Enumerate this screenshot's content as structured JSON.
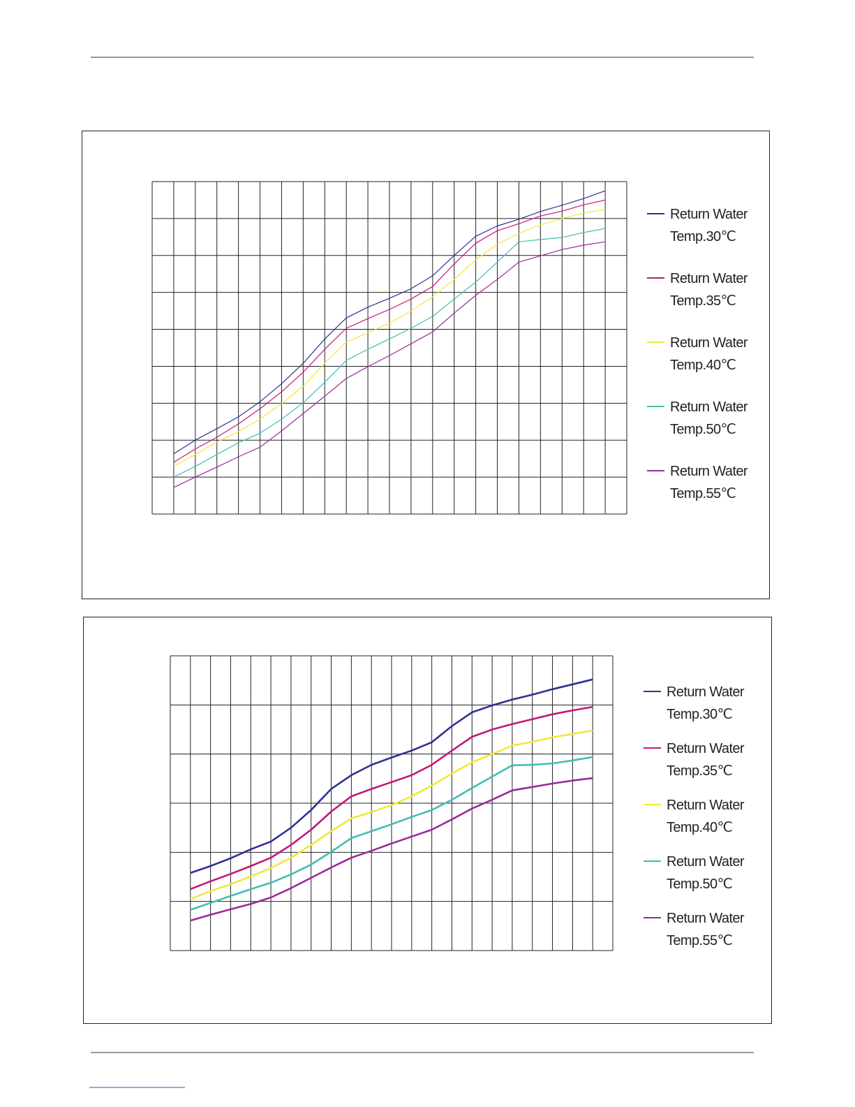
{
  "chart_data": [
    {
      "type": "line",
      "x": [
        1,
        2,
        3,
        4,
        5,
        6,
        7,
        8,
        9,
        10,
        11,
        12,
        13,
        14,
        15,
        16,
        17,
        18,
        19,
        20,
        21
      ],
      "xlim": [
        0,
        22
      ],
      "xticks": [
        0,
        1,
        2,
        3,
        4,
        5,
        6,
        7,
        8,
        9,
        10,
        11,
        12,
        13,
        14,
        15,
        16,
        17,
        18,
        19,
        20,
        21,
        22
      ],
      "ylim": [
        0,
        9
      ],
      "yticks": [
        0,
        1,
        2,
        3,
        4,
        5,
        6,
        7,
        8,
        9
      ],
      "grid": true,
      "legend": "right",
      "line_width": 1.2,
      "series": [
        {
          "name": "Return Water Temp.30℃",
          "color": "#2e3192",
          "values": [
            1.63,
            2.0,
            2.31,
            2.63,
            3.04,
            3.53,
            4.08,
            4.74,
            5.31,
            5.6,
            5.84,
            6.1,
            6.45,
            7.0,
            7.52,
            7.8,
            7.98,
            8.19,
            8.36,
            8.54,
            8.75
          ]
        },
        {
          "name": "Return Water Temp.35℃",
          "color": "#c2187a",
          "values": [
            1.4,
            1.76,
            2.08,
            2.44,
            2.85,
            3.31,
            3.84,
            4.46,
            5.03,
            5.29,
            5.54,
            5.82,
            6.16,
            6.77,
            7.33,
            7.67,
            7.86,
            8.07,
            8.2,
            8.37,
            8.5
          ]
        },
        {
          "name": "Return Water Temp.40℃",
          "color": "#f0e83a",
          "values": [
            1.29,
            1.61,
            1.95,
            2.23,
            2.57,
            2.99,
            3.46,
            4.08,
            4.65,
            4.91,
            5.16,
            5.5,
            5.88,
            6.35,
            6.88,
            7.3,
            7.6,
            7.83,
            8.0,
            8.15,
            8.24
          ]
        },
        {
          "name": "Return Water Temp.50℃",
          "color": "#40bfae",
          "values": [
            1.0,
            1.29,
            1.61,
            1.93,
            2.19,
            2.57,
            3.01,
            3.57,
            4.16,
            4.46,
            4.74,
            5.03,
            5.35,
            5.82,
            6.28,
            6.82,
            7.37,
            7.43,
            7.49,
            7.62,
            7.73
          ]
        },
        {
          "name": "Return Water Temp.55℃",
          "color": "#9a2a9a",
          "values": [
            0.72,
            1.0,
            1.27,
            1.55,
            1.81,
            2.25,
            2.72,
            3.19,
            3.67,
            3.99,
            4.29,
            4.61,
            4.93,
            5.44,
            5.92,
            6.35,
            6.82,
            6.99,
            7.16,
            7.28,
            7.37
          ]
        }
      ]
    },
    {
      "type": "line",
      "x": [
        1,
        2,
        3,
        4,
        5,
        6,
        7,
        8,
        9,
        10,
        11,
        12,
        13,
        14,
        15,
        16,
        17,
        18,
        19,
        20,
        21
      ],
      "xlim": [
        0,
        22
      ],
      "xticks": [
        0,
        1,
        2,
        3,
        4,
        5,
        6,
        7,
        8,
        9,
        10,
        11,
        12,
        13,
        14,
        15,
        16,
        17,
        18,
        19,
        20,
        21,
        22
      ],
      "ylim": [
        0,
        6
      ],
      "yticks": [
        0,
        1,
        2,
        3,
        4,
        5,
        6
      ],
      "grid": true,
      "legend": "right",
      "line_width": 2.6,
      "series": [
        {
          "name": "Return Water Temp.30℃",
          "color": "#2e3192",
          "values": [
            1.58,
            1.72,
            1.88,
            2.06,
            2.22,
            2.5,
            2.86,
            3.29,
            3.57,
            3.78,
            3.93,
            4.07,
            4.24,
            4.57,
            4.85,
            4.99,
            5.11,
            5.21,
            5.32,
            5.42,
            5.52
          ]
        },
        {
          "name": "Return Water Temp.35℃",
          "color": "#c2187a",
          "values": [
            1.25,
            1.41,
            1.56,
            1.72,
            1.89,
            2.15,
            2.46,
            2.83,
            3.14,
            3.29,
            3.43,
            3.57,
            3.78,
            4.07,
            4.35,
            4.5,
            4.61,
            4.71,
            4.81,
            4.89,
            4.96
          ]
        },
        {
          "name": "Return Water Temp.40℃",
          "color": "#f0e83a",
          "values": [
            1.05,
            1.21,
            1.35,
            1.51,
            1.68,
            1.89,
            2.15,
            2.43,
            2.69,
            2.82,
            2.96,
            3.14,
            3.36,
            3.6,
            3.83,
            4.0,
            4.17,
            4.25,
            4.34,
            4.41,
            4.48
          ]
        },
        {
          "name": "Return Water Temp.50℃",
          "color": "#40bfae",
          "values": [
            0.83,
            0.97,
            1.11,
            1.25,
            1.38,
            1.55,
            1.75,
            2.01,
            2.29,
            2.43,
            2.57,
            2.72,
            2.86,
            3.07,
            3.31,
            3.54,
            3.77,
            3.78,
            3.81,
            3.87,
            3.94
          ]
        },
        {
          "name": "Return Water Temp.55℃",
          "color": "#9a2a9a",
          "values": [
            0.61,
            0.73,
            0.84,
            0.95,
            1.08,
            1.27,
            1.48,
            1.69,
            1.89,
            2.03,
            2.18,
            2.32,
            2.46,
            2.67,
            2.89,
            3.07,
            3.26,
            3.33,
            3.4,
            3.46,
            3.51
          ]
        }
      ]
    }
  ]
}
